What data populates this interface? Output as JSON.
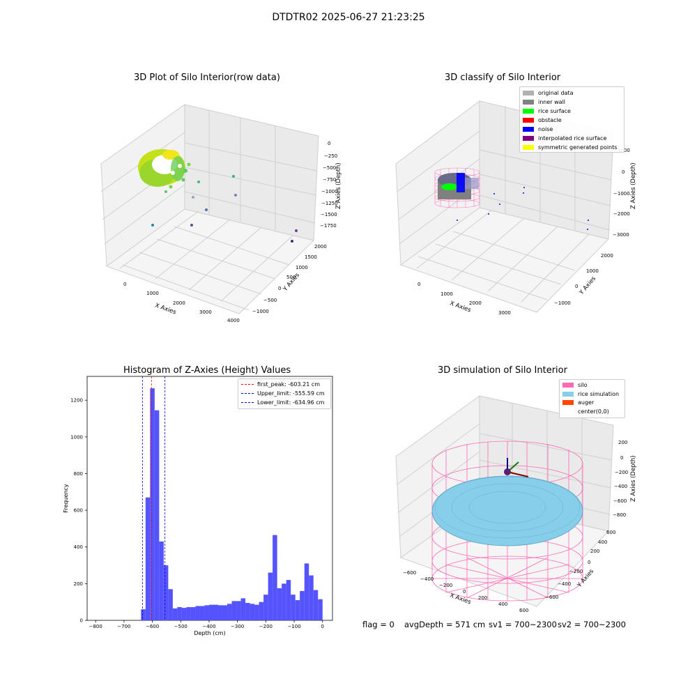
{
  "suptitle": "DTDTR02 2025-06-27 21:23:25",
  "footer": {
    "flag": "flag = 0",
    "avg": "avgDepth = 571 cm",
    "sv1": "sv1 = 700~2300",
    "sv2": "sv2 = 700~2300"
  },
  "colors": {
    "hist_bar": "#4b4bff",
    "peak_line": "#ff0000",
    "limit_line": "#0000cc",
    "silo": "#ff69b4",
    "rice": "#87ceeb",
    "auger": "#ff4500",
    "inner_wall": "#808080",
    "rice_surface": "#00ff00",
    "noise": "#0000ff"
  },
  "panel1": {
    "title": "3D Plot of Silo Interior(row data)",
    "xlabel": "X Axies",
    "ylabel": "Y Axies",
    "zlabel": "Z Axies (Depth)",
    "xticks": [
      "0",
      "1000",
      "2000",
      "3000",
      "4000"
    ],
    "yticks": [
      "−1000",
      "−500",
      "0",
      "500",
      "1000",
      "1500",
      "2000"
    ],
    "zticks": [
      "0",
      "−250",
      "−500",
      "−750",
      "−1000",
      "−1250",
      "−1500",
      "−1750"
    ]
  },
  "panel2": {
    "title": "3D classify of Silo Interior",
    "xlabel": "X Axies",
    "ylabel": "Y Axies",
    "zlabel": "Z Axies (Depth)",
    "xticks": [
      "0",
      "1000",
      "2000",
      "3000"
    ],
    "yticks": [
      "−1000",
      "0",
      "1000",
      "2000"
    ],
    "zticks": [
      "1000",
      "0",
      "−1000",
      "−2000",
      "−3000"
    ],
    "legend": [
      {
        "label": "original data",
        "color": "#b0b0b0"
      },
      {
        "label": "inner wall",
        "color": "#808080"
      },
      {
        "label": "rice surface",
        "color": "#00ff00"
      },
      {
        "label": "obstacle",
        "color": "#ff0000"
      },
      {
        "label": "noise",
        "color": "#0000ff"
      },
      {
        "label": "interpolated rice surface",
        "color": "#800080"
      },
      {
        "label": "symmetric generated points",
        "color": "#ffff00"
      }
    ]
  },
  "panel3": {
    "title": "3D simulation of Silo Interior",
    "xlabel": "X Axies",
    "ylabel": "Y Axies",
    "zlabel": "Z Axies (Depth)",
    "xticks": [
      "−600",
      "−400",
      "−200",
      "0",
      "200",
      "400",
      "600"
    ],
    "yticks": [
      "−600",
      "−400",
      "−200",
      "0",
      "200",
      "400",
      "600"
    ],
    "zticks": [
      "200",
      "0",
      "−200",
      "−400",
      "−600",
      "−800"
    ],
    "legend": [
      {
        "label": "silo",
        "color": "#ff69b4"
      },
      {
        "label": "rice simulation",
        "color": "#87ceeb"
      },
      {
        "label": "auger",
        "color": "#ff4500"
      },
      {
        "label": "center(0,0)",
        "color": ""
      }
    ]
  },
  "chart_data": {
    "type": "bar",
    "title": "Histogram of Z-Axies (Height) Values",
    "xlabel": "Depth (cm)",
    "ylabel": "Frequency",
    "xlim": [
      -830,
      35
    ],
    "ylim": [
      0,
      1330
    ],
    "xticks": [
      -800,
      -700,
      -600,
      -500,
      -400,
      -300,
      -200,
      -100,
      0
    ],
    "yticks": [
      0,
      200,
      400,
      600,
      800,
      1000,
      1200
    ],
    "bin_width": 16,
    "bins": [
      {
        "x": -640,
        "y": 60
      },
      {
        "x": -624,
        "y": 670
      },
      {
        "x": -608,
        "y": 1265
      },
      {
        "x": -592,
        "y": 1145
      },
      {
        "x": -576,
        "y": 430
      },
      {
        "x": -560,
        "y": 300
      },
      {
        "x": -544,
        "y": 170
      },
      {
        "x": -528,
        "y": 65
      },
      {
        "x": -512,
        "y": 72
      },
      {
        "x": -496,
        "y": 68
      },
      {
        "x": -480,
        "y": 72
      },
      {
        "x": -464,
        "y": 72
      },
      {
        "x": -448,
        "y": 78
      },
      {
        "x": -432,
        "y": 78
      },
      {
        "x": -416,
        "y": 82
      },
      {
        "x": -400,
        "y": 85
      },
      {
        "x": -384,
        "y": 85
      },
      {
        "x": -368,
        "y": 82
      },
      {
        "x": -352,
        "y": 82
      },
      {
        "x": -336,
        "y": 90
      },
      {
        "x": -320,
        "y": 105
      },
      {
        "x": -304,
        "y": 105
      },
      {
        "x": -288,
        "y": 120
      },
      {
        "x": -272,
        "y": 95
      },
      {
        "x": -256,
        "y": 90
      },
      {
        "x": -240,
        "y": 85
      },
      {
        "x": -224,
        "y": 100
      },
      {
        "x": -208,
        "y": 140
      },
      {
        "x": -192,
        "y": 260
      },
      {
        "x": -176,
        "y": 465
      },
      {
        "x": -160,
        "y": 175
      },
      {
        "x": -144,
        "y": 200
      },
      {
        "x": -128,
        "y": 220
      },
      {
        "x": -112,
        "y": 140
      },
      {
        "x": -96,
        "y": 110
      },
      {
        "x": -80,
        "y": 160
      },
      {
        "x": -64,
        "y": 310
      },
      {
        "x": -48,
        "y": 245
      },
      {
        "x": -32,
        "y": 165
      },
      {
        "x": -16,
        "y": 115
      }
    ],
    "vlines": [
      {
        "label": "first_peak: -603.21 cm",
        "x": -603.21,
        "color": "#ff0000"
      },
      {
        "label": "Upper_limit: -555.59 cm",
        "x": -555.59,
        "color": "#0000cc"
      },
      {
        "label": "Lower_limit: -634.96 cm",
        "x": -634.96,
        "color": "#0000cc"
      }
    ],
    "legend_position": "top-right"
  }
}
